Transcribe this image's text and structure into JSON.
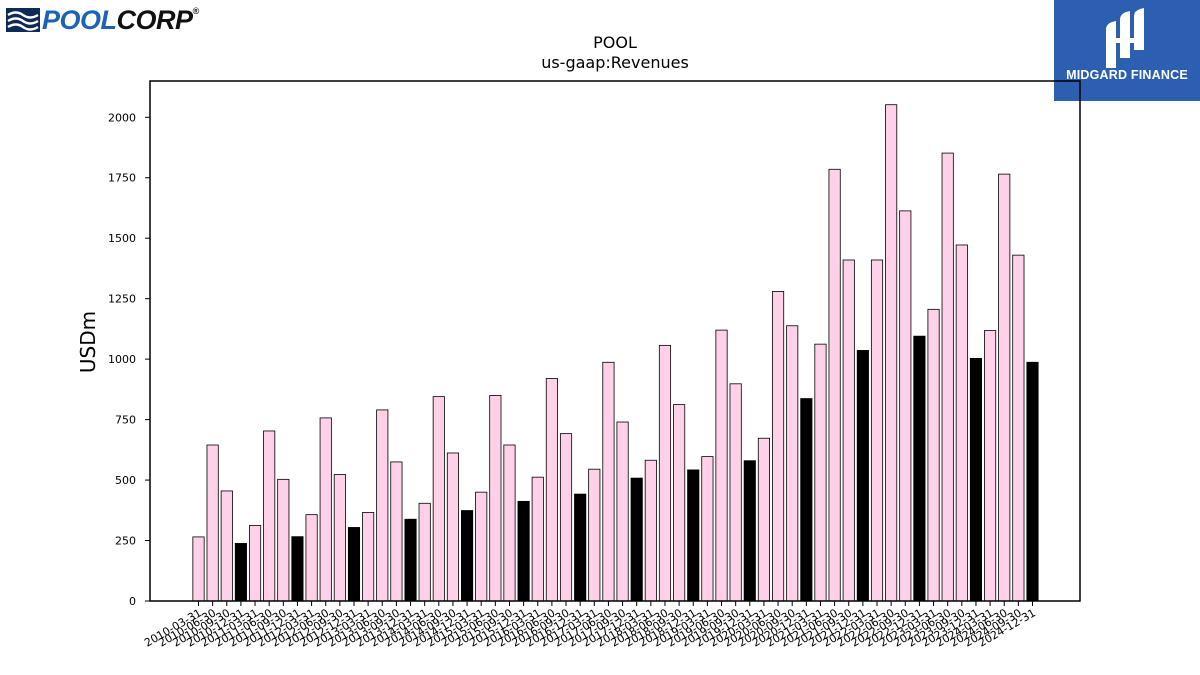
{
  "logos": {
    "left": {
      "part1": "POOL",
      "part2": "CORP",
      "reg": "®"
    },
    "right": {
      "brand": "MIDGARD FINANCE"
    }
  },
  "colors": {
    "bar_default": "#ffd1e8",
    "bar_annual": "#000000",
    "axis": "#000000",
    "logo_pool_blue": "#1d63b5",
    "logo_right_bg": "#2c5fb0"
  },
  "chart_data": {
    "type": "bar",
    "title": "POOL",
    "subtitle": "us-gaap:Revenues",
    "xlabel": "",
    "ylabel": "USDm",
    "ylim": [
      0,
      2150
    ],
    "yticks": [
      0,
      250,
      500,
      750,
      1000,
      1250,
      1500,
      1750,
      2000
    ],
    "grid": false,
    "legend": "none",
    "categories": [
      "2010-03-31",
      "2010-06-30",
      "2010-09-30",
      "2010-12-31",
      "2011-03-31",
      "2011-06-30",
      "2011-09-30",
      "2011-12-31",
      "2012-03-31",
      "2012-06-30",
      "2012-09-30",
      "2012-12-31",
      "2013-03-31",
      "2013-06-30",
      "2013-09-30",
      "2013-12-31",
      "2014-03-31",
      "2014-06-30",
      "2014-09-30",
      "2014-12-31",
      "2015-03-31",
      "2015-06-30",
      "2015-09-30",
      "2015-12-31",
      "2016-03-31",
      "2016-06-30",
      "2016-09-30",
      "2016-12-31",
      "2017-03-31",
      "2017-06-30",
      "2017-09-30",
      "2017-12-31",
      "2018-03-31",
      "2018-06-30",
      "2018-09-30",
      "2018-12-31",
      "2019-03-31",
      "2019-06-30",
      "2019-09-30",
      "2019-12-31",
      "2020-03-31",
      "2020-06-30",
      "2020-09-30",
      "2020-12-31",
      "2021-03-31",
      "2021-06-30",
      "2021-09-30",
      "2021-12-31",
      "2022-03-31",
      "2022-06-30",
      "2022-09-30",
      "2022-12-31",
      "2023-03-31",
      "2023-06-30",
      "2023-09-30",
      "2023-12-31",
      "2024-03-31",
      "2024-06-30",
      "2024-09-30",
      "2024-12-31"
    ],
    "values": [
      265,
      645,
      455,
      238,
      312,
      703,
      503,
      266,
      357,
      757,
      523,
      304,
      366,
      790,
      575,
      338,
      404,
      845,
      612,
      374,
      450,
      850,
      645,
      412,
      512,
      920,
      692,
      442,
      545,
      987,
      740,
      508,
      582,
      1057,
      812,
      542,
      597,
      1120,
      898,
      580,
      673,
      1280,
      1138,
      837,
      1062,
      1785,
      1410,
      1036,
      1410,
      2052,
      1613,
      1095,
      1206,
      1852,
      1472,
      1003,
      1118,
      1765,
      1430,
      987
    ],
    "highlight_every": 4,
    "highlight_offset": 3
  }
}
